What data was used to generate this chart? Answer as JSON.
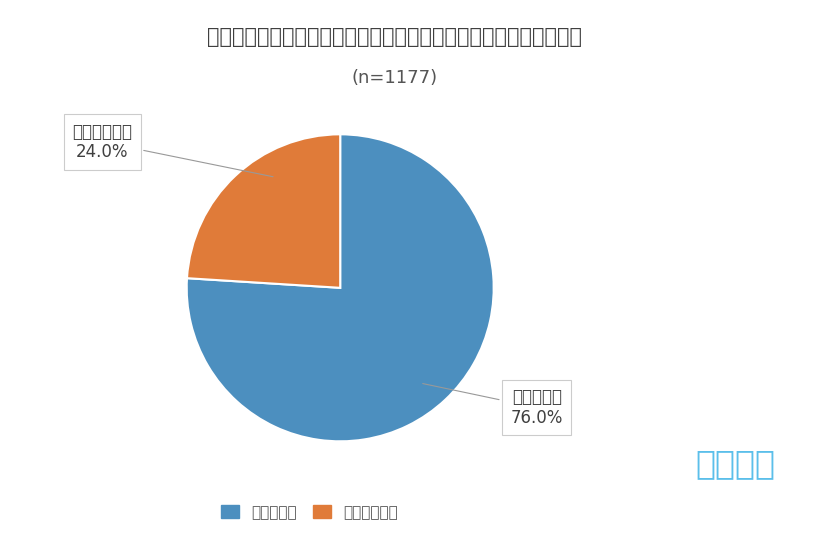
{
  "title": "有給休暇を取得させることが義務化されたことを知っていますか？",
  "subtitle": "(n=1177)",
  "slices": [
    76.0,
    24.0
  ],
  "labels": [
    "知っていた",
    "知らなかった"
  ],
  "colors": [
    "#4C8FBF",
    "#E07B39"
  ],
  "startangle": 90,
  "bg_color": "#FFFFFF",
  "legend_labels": [
    "知っていた",
    "知らなかった"
  ],
  "label_known_line1": "知っていた",
  "label_known_line2": "76.0%",
  "label_unknown_line1": "知らなかった",
  "label_unknown_line2": "24.0%",
  "brand_text": "エアトリ",
  "brand_color": "#5BBFEA",
  "title_fontsize": 15,
  "subtitle_fontsize": 13,
  "annotation_fontsize": 12,
  "legend_fontsize": 11
}
